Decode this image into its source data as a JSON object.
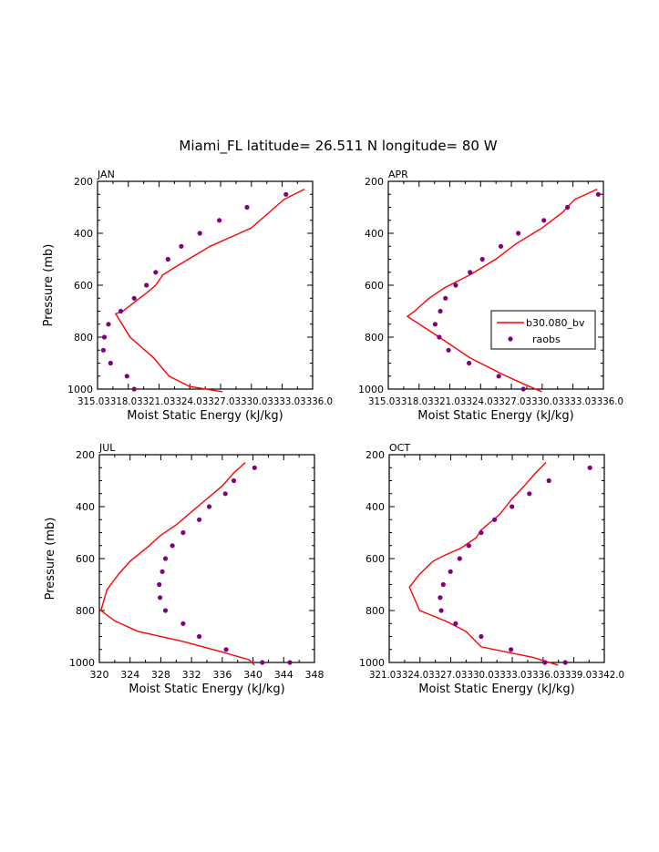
{
  "title": "Miami_FL  latitude= 26.511 N longitude= 80 W",
  "legend": {
    "model_label": "b30.080_bv",
    "obs_label": "raobs"
  },
  "colors": {
    "model": "#ff0000",
    "obs": "#800080"
  },
  "chart_data": [
    {
      "type": "line",
      "panel_label": "JAN",
      "xlabel": "Moist Static Energy (kJ/kg)",
      "ylabel": "Pressure (mb)",
      "xlim": [
        315.03,
        336.0
      ],
      "ylim": [
        200,
        1000
      ],
      "y_inverted": true,
      "x_ticks": [
        315.03,
        318.03,
        321.03,
        324.03,
        327.03,
        330.03,
        333.03,
        336.0
      ],
      "x_tick_labels": [
        "315.0",
        "318.0",
        "321.0",
        "324.0",
        "327.0",
        "330.0",
        "333.0",
        "336.0"
      ],
      "y_ticks": [
        200,
        400,
        600,
        800,
        1000
      ],
      "y_tick_labels": [
        "200",
        "400",
        "600",
        "800",
        "1000"
      ],
      "series": [
        {
          "name": "b30.080_bv",
          "kind": "line",
          "x": [
            335.2,
            333.2,
            330.0,
            326.0,
            322.6,
            321.4,
            320.7,
            319.8,
            318.8,
            317.5,
            316.8,
            318.2,
            320.5,
            322.0,
            324.0,
            327.2
          ],
          "y": [
            230,
            270,
            380,
            450,
            530,
            560,
            600,
            630,
            660,
            700,
            710,
            800,
            880,
            950,
            990,
            1010
          ]
        },
        {
          "name": "raobs",
          "kind": "scatter",
          "x": [
            333.4,
            329.6,
            326.9,
            325.0,
            323.2,
            321.9,
            320.7,
            319.8,
            318.6,
            317.3,
            316.1,
            315.7,
            315.6,
            316.3,
            317.9,
            318.6
          ],
          "y": [
            250,
            300,
            350,
            400,
            450,
            500,
            550,
            600,
            650,
            700,
            750,
            800,
            850,
            900,
            950,
            1000
          ]
        }
      ]
    },
    {
      "type": "line",
      "panel_label": "APR",
      "xlabel": "Moist Static Energy (kJ/kg)",
      "ylabel": "",
      "xlim": [
        315.03,
        336.0
      ],
      "ylim": [
        200,
        1000
      ],
      "y_inverted": true,
      "x_ticks": [
        315.03,
        318.03,
        321.03,
        324.03,
        327.03,
        330.03,
        333.03,
        336.0
      ],
      "x_tick_labels": [
        "315.0",
        "318.0",
        "321.0",
        "324.0",
        "327.0",
        "330.0",
        "333.0",
        "336.0"
      ],
      "y_ticks": [
        200,
        400,
        600,
        800,
        1000
      ],
      "y_tick_labels": [
        "200",
        "400",
        "600",
        "800",
        "1000"
      ],
      "series": [
        {
          "name": "b30.080_bv",
          "kind": "line",
          "x": [
            335.4,
            333.2,
            332.0,
            330.0,
            327.5,
            325.5,
            323.0,
            320.5,
            319.0,
            317.6,
            316.9,
            320.0,
            323.0,
            326.0,
            328.2,
            330.0
          ],
          "y": [
            230,
            270,
            320,
            380,
            440,
            500,
            560,
            610,
            650,
            700,
            720,
            800,
            880,
            940,
            980,
            1010
          ]
        },
        {
          "name": "raobs",
          "kind": "scatter",
          "x": [
            335.5,
            332.5,
            330.2,
            327.7,
            326.0,
            324.2,
            323.0,
            321.6,
            320.6,
            320.1,
            319.6,
            320.0,
            320.9,
            322.9,
            325.8,
            328.2
          ],
          "y": [
            250,
            300,
            350,
            400,
            450,
            500,
            550,
            600,
            650,
            700,
            750,
            800,
            850,
            900,
            950,
            1000
          ]
        }
      ]
    },
    {
      "type": "line",
      "panel_label": "JUL",
      "xlabel": "Moist Static Energy (kJ/kg)",
      "ylabel": "Pressure (mb)",
      "xlim": [
        320,
        348
      ],
      "ylim": [
        200,
        1000
      ],
      "y_inverted": true,
      "x_ticks": [
        320,
        324,
        328,
        332,
        336,
        340,
        344,
        348
      ],
      "x_tick_labels": [
        "320",
        "324",
        "328",
        "332",
        "336",
        "340",
        "344",
        "348"
      ],
      "y_ticks": [
        200,
        400,
        600,
        800,
        1000
      ],
      "y_tick_labels": [
        "200",
        "400",
        "600",
        "800",
        "1000"
      ],
      "series": [
        {
          "name": "b30.080_bv",
          "kind": "line",
          "x": [
            339.0,
            337.5,
            336.0,
            334.0,
            332.0,
            330.0,
            328.0,
            326.5,
            324.0,
            322.5,
            321.0,
            320.2,
            322.0,
            325.0,
            331.0,
            336.0,
            339.5,
            340.2
          ],
          "y": [
            230,
            270,
            320,
            370,
            420,
            470,
            510,
            550,
            610,
            660,
            720,
            800,
            840,
            880,
            920,
            960,
            990,
            1010
          ]
        },
        {
          "name": "raobs",
          "kind": "scatter",
          "x": [
            340.2,
            337.5,
            336.4,
            334.3,
            333.0,
            330.9,
            329.5,
            328.6,
            328.2,
            327.8,
            327.9,
            328.6,
            330.9,
            333.0,
            336.5,
            341.2,
            344.8
          ],
          "y": [
            250,
            300,
            350,
            400,
            450,
            500,
            550,
            600,
            650,
            700,
            750,
            800,
            850,
            900,
            950,
            1000,
            1000
          ]
        }
      ]
    },
    {
      "type": "line",
      "panel_label": "OCT",
      "xlabel": "Moist Static Energy (kJ/kg)",
      "ylabel": "",
      "xlim": [
        321.03,
        342.0
      ],
      "ylim": [
        200,
        1000
      ],
      "y_inverted": true,
      "x_ticks": [
        321.03,
        324.03,
        327.03,
        330.03,
        333.03,
        336.03,
        339.03,
        342.0
      ],
      "x_tick_labels": [
        "321.0",
        "324.0",
        "327.0",
        "330.0",
        "333.0",
        "336.0",
        "339.0",
        "342.0"
      ],
      "y_ticks": [
        200,
        400,
        600,
        800,
        1000
      ],
      "y_tick_labels": [
        "200",
        "400",
        "600",
        "800",
        "1000"
      ],
      "series": [
        {
          "name": "b30.080_bv",
          "kind": "line",
          "x": [
            336.3,
            335.3,
            334.2,
            333.0,
            331.8,
            330.0,
            329.5,
            328.0,
            326.3,
            325.3,
            324.0,
            323.0,
            324.0,
            326.5,
            328.5,
            330.0,
            335.0,
            337.5
          ],
          "y": [
            230,
            270,
            320,
            370,
            430,
            490,
            520,
            560,
            590,
            610,
            660,
            710,
            800,
            840,
            880,
            940,
            980,
            1010
          ]
        },
        {
          "name": "raobs",
          "kind": "scatter",
          "x": [
            340.6,
            336.6,
            334.7,
            333.0,
            331.3,
            330.0,
            328.8,
            327.9,
            327.0,
            326.3,
            326.0,
            326.1,
            327.5,
            330.0,
            332.9,
            336.2,
            338.2
          ],
          "y": [
            250,
            300,
            350,
            400,
            450,
            500,
            550,
            600,
            650,
            700,
            750,
            800,
            850,
            900,
            950,
            1000,
            1000
          ]
        }
      ]
    }
  ]
}
